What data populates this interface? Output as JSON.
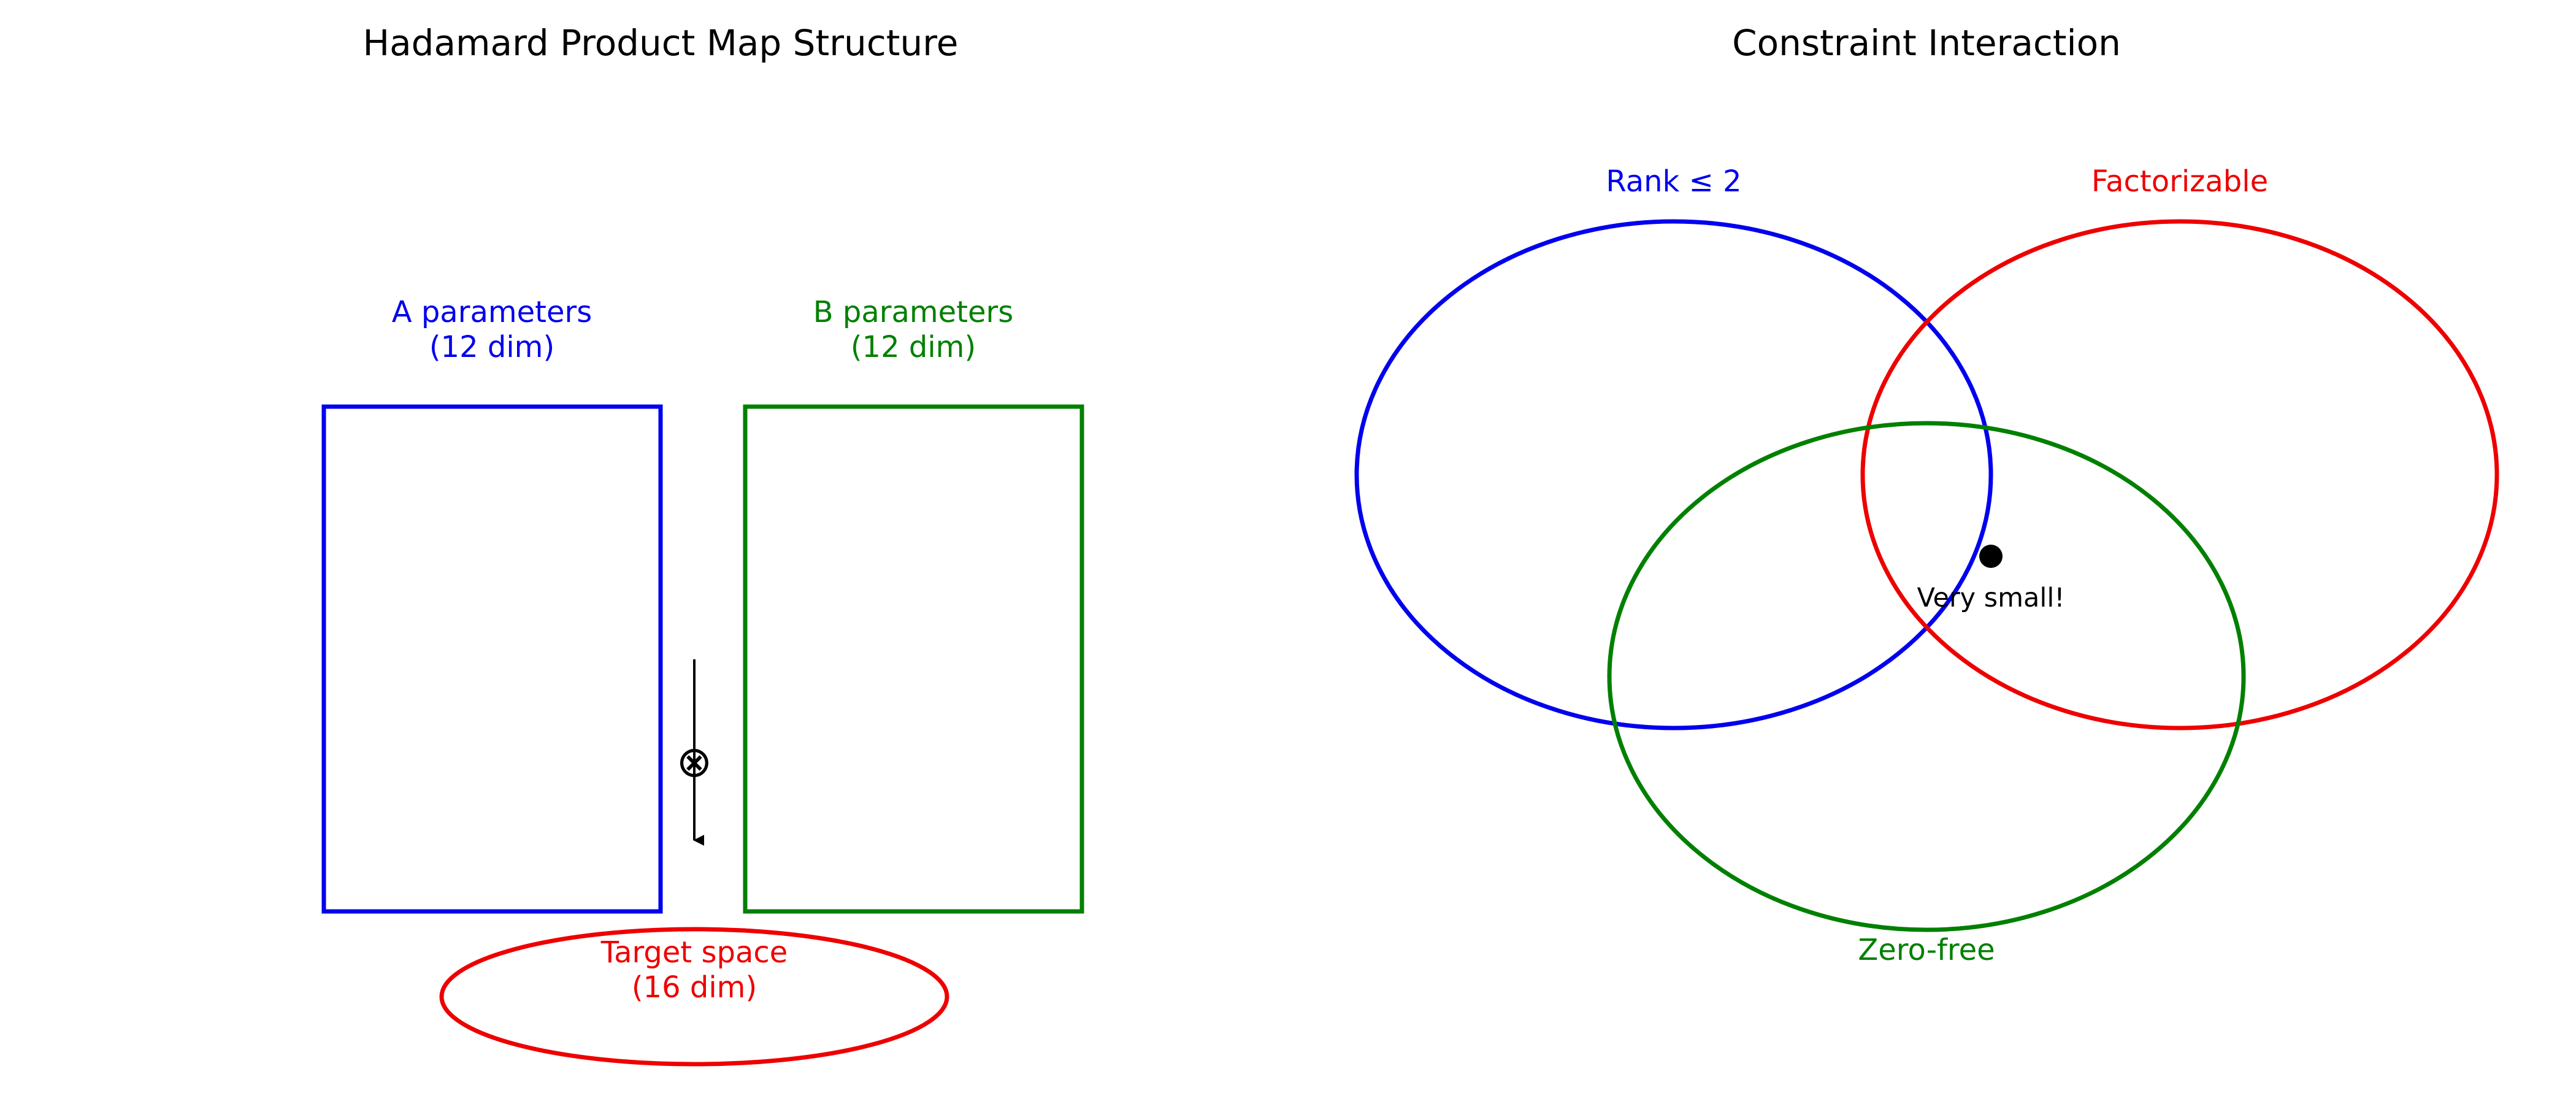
{
  "left_panel": {
    "title": "Hadamard Product Map Structure",
    "box_a": {
      "label_line1": "A parameters",
      "label_line2": "(12 dim)",
      "color": "#0000ee"
    },
    "box_b": {
      "label_line1": "B parameters",
      "label_line2": "(12 dim)",
      "color": "#008000"
    },
    "operator": {
      "symbol": "⊗",
      "color": "#000000"
    },
    "target": {
      "label_line1": "Target space",
      "label_line2": "(16 dim)",
      "color": "#ee0000"
    }
  },
  "right_panel": {
    "title": "Constraint Interaction",
    "sets": [
      {
        "label": "Rank ≤ 2",
        "color": "#0000ee"
      },
      {
        "label": "Factorizable",
        "color": "#ee0000"
      },
      {
        "label": "Zero-free",
        "color": "#008000"
      }
    ],
    "intersection_note": "Very small!"
  }
}
